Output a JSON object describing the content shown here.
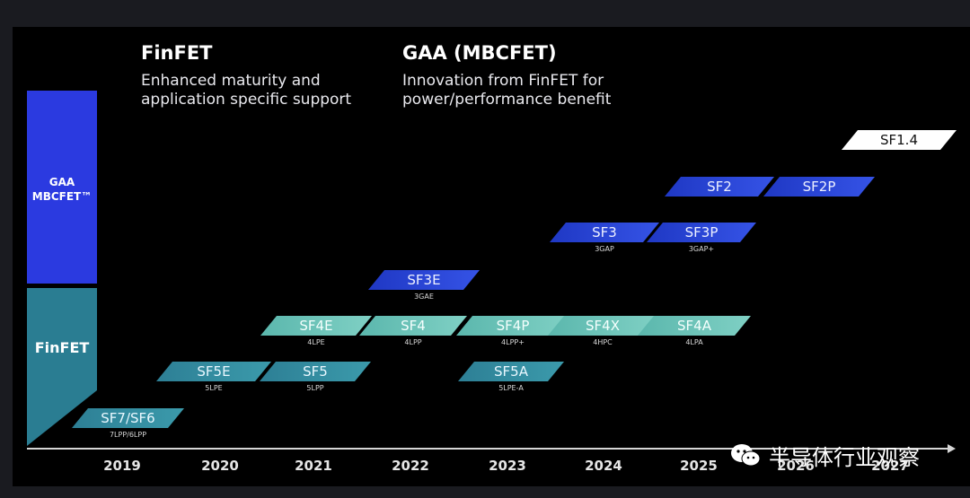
{
  "headers": {
    "finfet": {
      "title": "FinFET",
      "subtitle": "Enhanced maturity and\napplication specific support"
    },
    "gaa": {
      "title": "GAA (MBCFET)",
      "subtitle": "Innovation from FinFET for\npower/performance benefit"
    }
  },
  "categories": {
    "gaa": "GAA\nMBCFET™",
    "finfet": "FinFET"
  },
  "years": [
    "2019",
    "2020",
    "2021",
    "2022",
    "2023",
    "2024",
    "2025",
    "2026",
    "2027"
  ],
  "nodes": [
    {
      "label": "SF7/SF6",
      "sub": "7LPP/6LPP",
      "kind": "finfet-dark"
    },
    {
      "label": "SF5E",
      "sub": "5LPE",
      "kind": "finfet-dark"
    },
    {
      "label": "SF5",
      "sub": "5LPP",
      "kind": "finfet-dark"
    },
    {
      "label": "SF5A",
      "sub": "5LPE-A",
      "kind": "finfet-dark"
    },
    {
      "label": "SF4E",
      "sub": "4LPE",
      "kind": "finfet"
    },
    {
      "label": "SF4",
      "sub": "4LPP",
      "kind": "finfet"
    },
    {
      "label": "SF4P",
      "sub": "4LPP+",
      "kind": "finfet"
    },
    {
      "label": "SF4X",
      "sub": "4HPC",
      "kind": "finfet"
    },
    {
      "label": "SF4A",
      "sub": "4LPA",
      "kind": "finfet"
    },
    {
      "label": "SF3E",
      "sub": "3GAE",
      "kind": "gaa"
    },
    {
      "label": "SF3",
      "sub": "3GAP",
      "kind": "gaa"
    },
    {
      "label": "SF3P",
      "sub": "3GAP+",
      "kind": "gaa"
    },
    {
      "label": "SF2",
      "sub": "",
      "kind": "gaa"
    },
    {
      "label": "SF2P",
      "sub": "",
      "kind": "gaa"
    },
    {
      "label": "SF1.4",
      "sub": "",
      "kind": "future"
    }
  ],
  "watermark": "半导体行业观察",
  "colors": {
    "gaa": "#1f38c4",
    "finfet": "#5bb7ad",
    "finfet_dark": "#2d7f95"
  }
}
